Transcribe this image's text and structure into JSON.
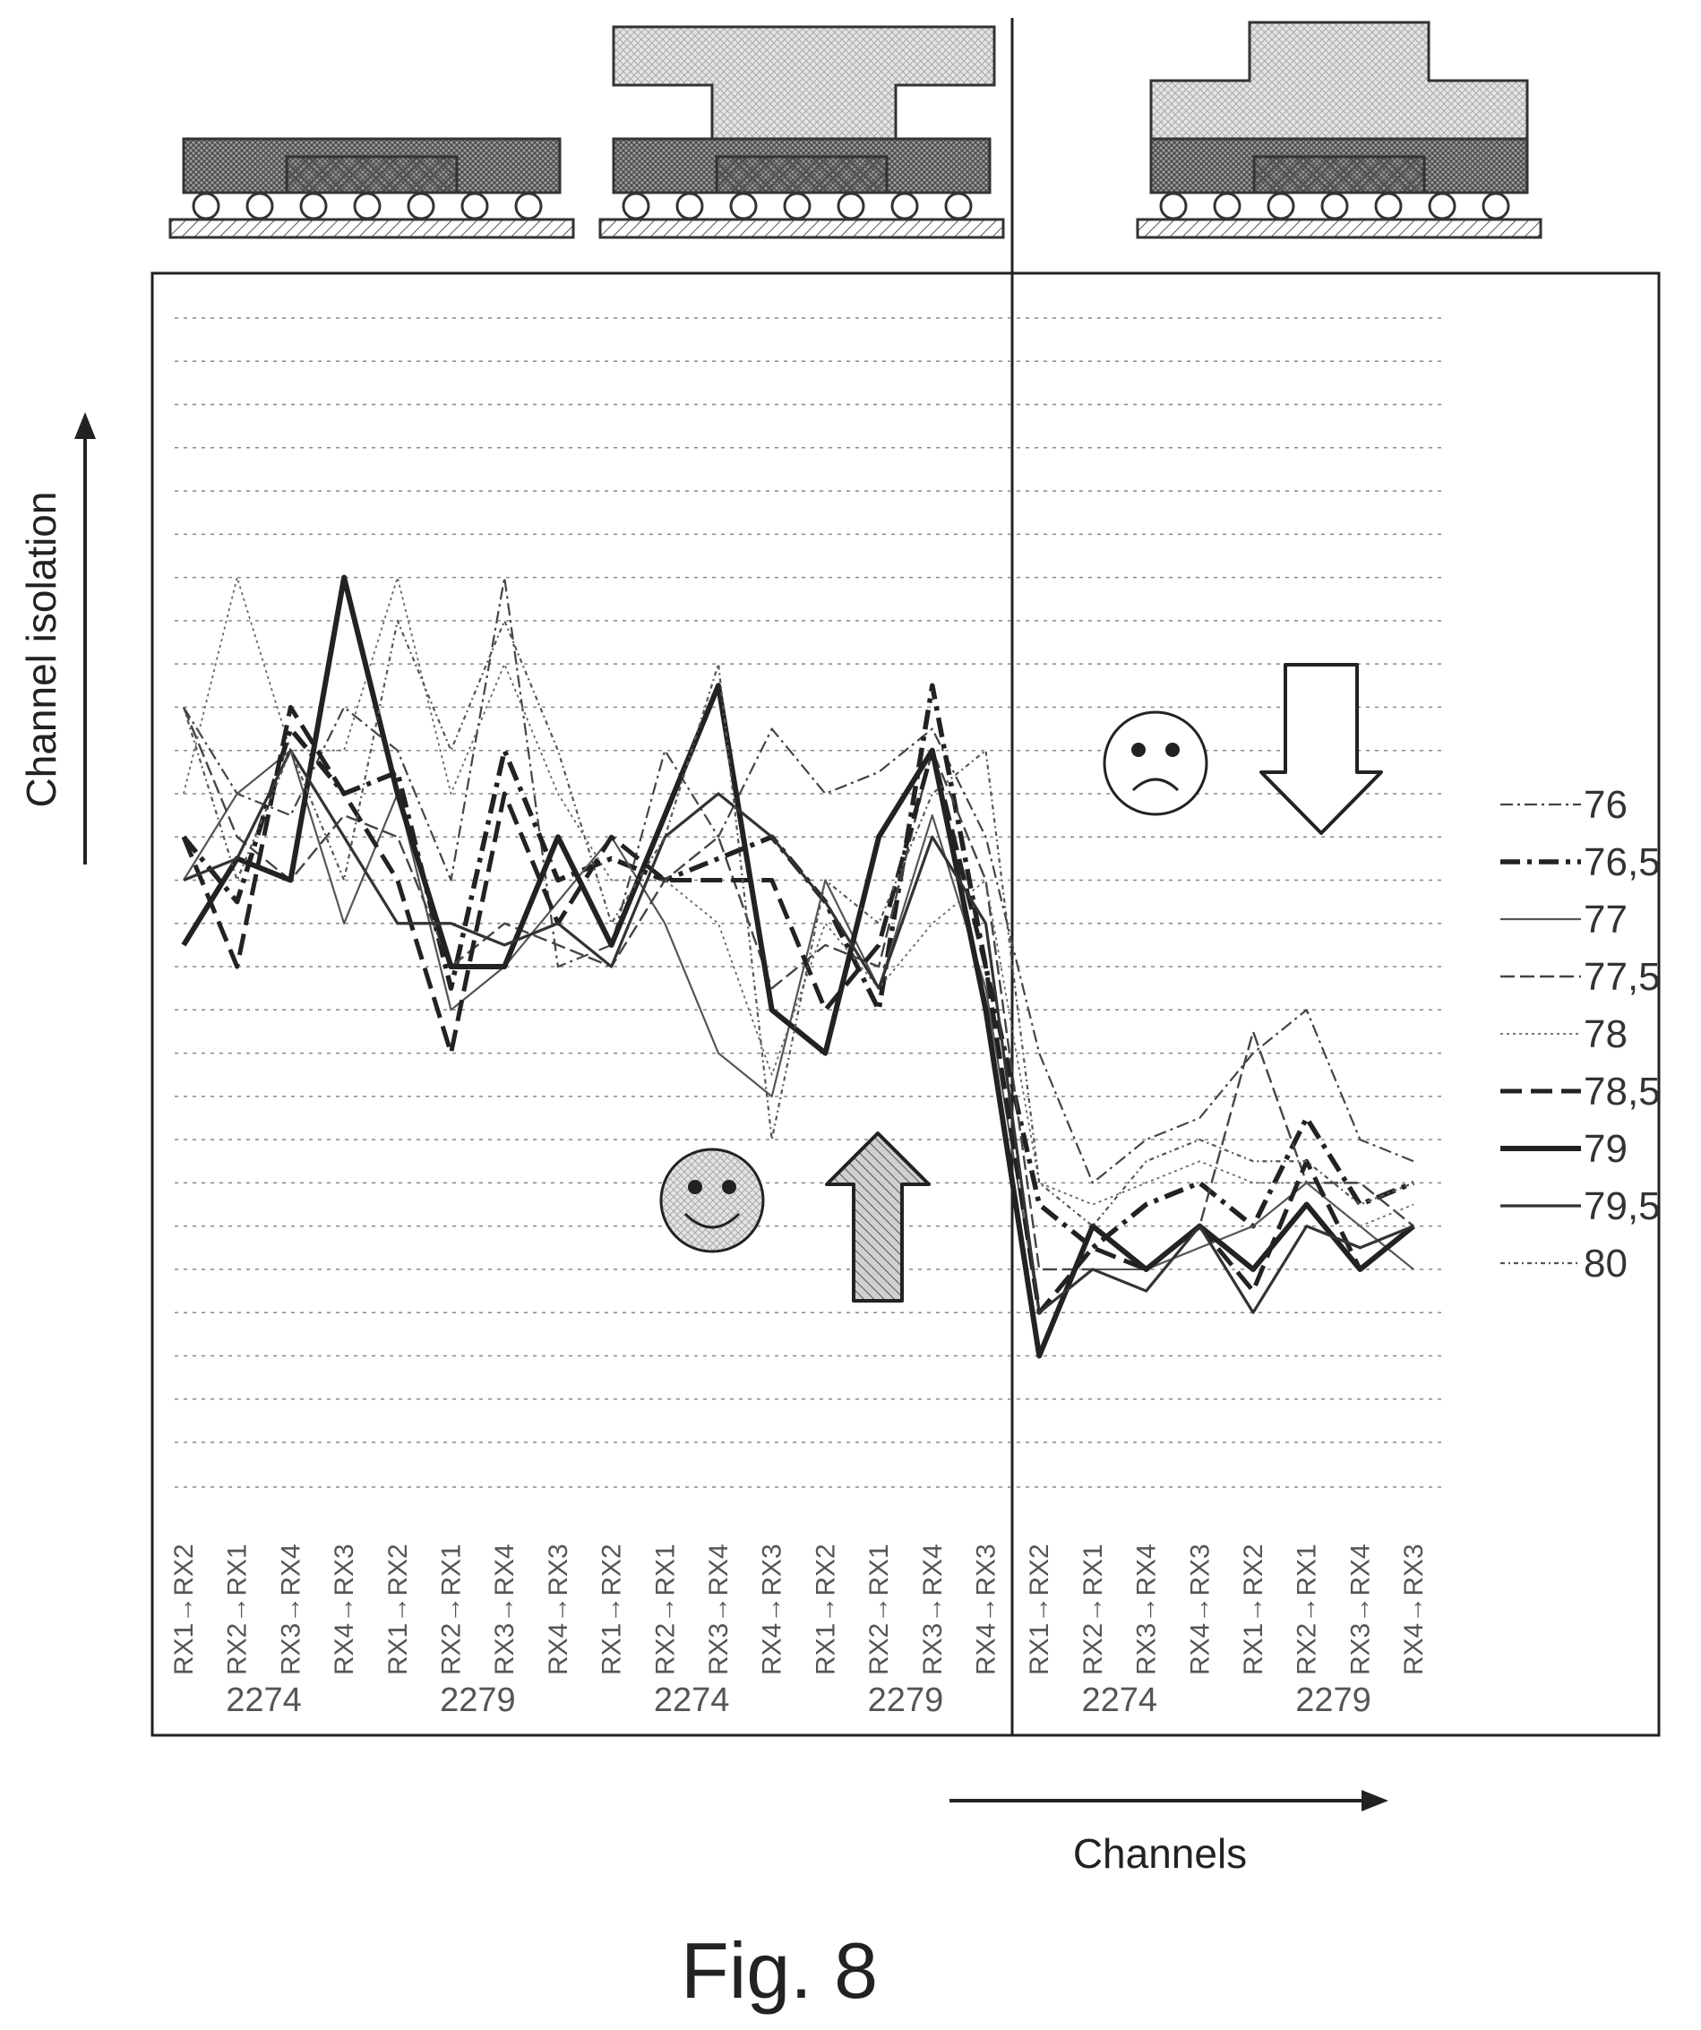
{
  "figure": {
    "caption": "Fig. 8"
  },
  "axes": {
    "y_label": "Channel isolation",
    "x_label": "Channels"
  },
  "colors": {
    "ink": "#222222",
    "grid": "#888888",
    "hatch": "#555555",
    "arrow_fill": "#bdbdbd"
  },
  "icons": {
    "happy": "smiley-face-icon",
    "sad": "frowning-face-icon",
    "up": "up-arrow-icon",
    "down": "down-arrow-icon",
    "packages": [
      "package-cross-section-icon",
      "package-with-heatsink-icon",
      "package-with-integrated-lid-icon"
    ]
  },
  "chart_data": {
    "type": "line",
    "title": "",
    "xlabel": "Channels",
    "ylabel": "Channel isolation",
    "grid": true,
    "legend_position": "right",
    "ylim": [
      0,
      26
    ],
    "categories": [
      "RX1→RX2",
      "RX2→RX1",
      "RX3→RX4",
      "RX4→RX3",
      "RX1→RX2",
      "RX2→RX1",
      "RX3→RX4",
      "RX4→RX3",
      "RX1→RX2",
      "RX2→RX1",
      "RX3→RX4",
      "RX4→RX3",
      "RX1→RX2",
      "RX2→RX1",
      "RX3→RX4",
      "RX4→RX3",
      "RX1→RX2",
      "RX2→RX1",
      "RX3→RX4",
      "RX4→RX3",
      "RX1→RX2",
      "RX2→RX1",
      "RX3→RX4",
      "RX4→RX3"
    ],
    "group_labels": [
      {
        "label": "2274",
        "start": 0,
        "end": 3
      },
      {
        "label": "2279",
        "start": 4,
        "end": 7
      },
      {
        "label": "2274",
        "start": 8,
        "end": 11
      },
      {
        "label": "2279",
        "start": 12,
        "end": 15
      },
      {
        "label": "2274",
        "start": 16,
        "end": 19
      },
      {
        "label": "2279",
        "start": 20,
        "end": 23
      }
    ],
    "series": [
      {
        "name": "76",
        "values": [
          17,
          15,
          14.5,
          17,
          16,
          13,
          20,
          11,
          11.5,
          16,
          14,
          16.5,
          15,
          15.5,
          16.5,
          14,
          9,
          6,
          7,
          7.5,
          9,
          10,
          7,
          6.5
        ]
      },
      {
        "name": "76,5",
        "values": [
          14,
          12.5,
          16.5,
          15,
          15.5,
          10.5,
          16,
          13,
          13.5,
          13,
          13.5,
          14,
          12.5,
          10,
          17.5,
          11,
          5.5,
          4.5,
          5.5,
          6,
          5,
          7.5,
          5.5,
          6
        ]
      },
      {
        "name": "77",
        "values": [
          13,
          15,
          16,
          12,
          15,
          10,
          11,
          12.5,
          14,
          12,
          9,
          8,
          13,
          10.5,
          14.5,
          10.5,
          3,
          4,
          4,
          4.5,
          5,
          6,
          5,
          4
        ]
      },
      {
        "name": "77,5",
        "values": [
          17,
          14,
          13,
          14.5,
          14,
          11,
          12,
          11.5,
          11,
          13,
          14,
          10.5,
          11.5,
          11,
          16,
          13,
          4,
          4,
          3.5,
          5,
          9.5,
          6,
          6,
          5
        ]
      },
      {
        "name": "78",
        "values": [
          15,
          20,
          16,
          16,
          20,
          15,
          18,
          15,
          13,
          13,
          12,
          8.5,
          12,
          10.5,
          12,
          13,
          6,
          5.5,
          6,
          6.5,
          6,
          6,
          5,
          5.5
        ]
      },
      {
        "name": "78,5",
        "values": [
          14,
          11,
          17,
          15,
          13,
          9,
          15,
          12,
          14,
          13,
          13,
          13,
          10,
          11.5,
          16,
          11,
          3,
          4.5,
          4,
          5,
          3.5,
          6.5,
          4,
          5
        ]
      },
      {
        "name": "79",
        "values": [
          11.5,
          13.5,
          13,
          20,
          15,
          11,
          11,
          14,
          11.5,
          14.5,
          17.5,
          10,
          9,
          14,
          16,
          10,
          2,
          5,
          4,
          5,
          4,
          5.5,
          4,
          5
        ]
      },
      {
        "name": "79,5",
        "values": [
          13,
          13.5,
          16,
          14,
          12,
          12,
          11.5,
          12,
          11,
          14,
          15,
          14,
          12.5,
          10.5,
          14,
          12,
          3,
          4,
          3.5,
          5,
          3,
          5,
          4.5,
          5
        ]
      },
      {
        "name": "80",
        "values": [
          17,
          13,
          16,
          13,
          19,
          16,
          19,
          16,
          12,
          14,
          18,
          7,
          13,
          12,
          15,
          16,
          6,
          5,
          6.5,
          7,
          6.5,
          6.5,
          5.5,
          6
        ]
      }
    ]
  }
}
